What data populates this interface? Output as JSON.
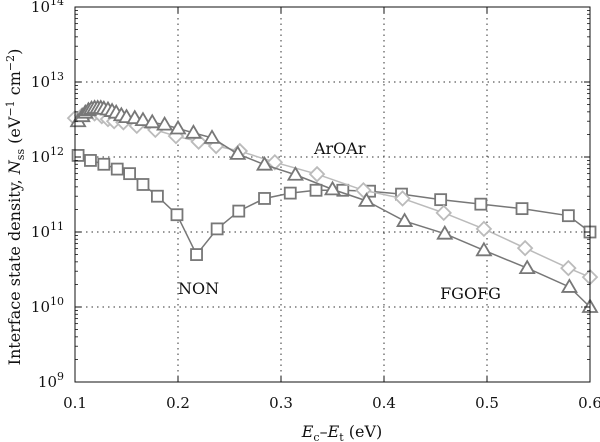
{
  "chart_data": {
    "type": "line",
    "xlabel": "E_c–E_t (eV)",
    "ylabel": "Interface state density, N_ss (eV^−1 cm^−2)",
    "x_axis_label_parts": {
      "main_1": "E",
      "sub_1": "c",
      "dash": "–",
      "main_2": "E",
      "sub_2": "t",
      "unit": " (eV)"
    },
    "y_axis_label_parts": {
      "prefix": "Interface state density, ",
      "main": "N",
      "sub": "ss",
      "unit_open": " (eV",
      "exp1": "−1",
      "unit_mid": " cm",
      "exp2": "−2",
      "unit_close": ")"
    },
    "xlim": [
      0.1,
      0.6
    ],
    "ylim": [
      1000000000.0,
      100000000000000.0
    ],
    "yscale": "log",
    "grid": true,
    "x_ticks": [
      0.1,
      0.2,
      0.3,
      0.4,
      0.5,
      0.6
    ],
    "x_tick_labels": [
      "0.1",
      "0.2",
      "0.3",
      "0.4",
      "0.5",
      "0.6"
    ],
    "y_ticks": [
      1000000000.0,
      10000000000.0,
      100000000000.0,
      1000000000000.0,
      10000000000000.0,
      100000000000000.0
    ],
    "y_tick_labels": [
      {
        "base": "10",
        "exp": "9"
      },
      {
        "base": "10",
        "exp": "10"
      },
      {
        "base": "10",
        "exp": "11"
      },
      {
        "base": "10",
        "exp": "12"
      },
      {
        "base": "10",
        "exp": "13"
      },
      {
        "base": "10",
        "exp": "14"
      }
    ],
    "series": [
      {
        "name": "NON",
        "marker": "square",
        "color": "#777777",
        "x": [
          0.103,
          0.115,
          0.128,
          0.141,
          0.153,
          0.166,
          0.18,
          0.199,
          0.218,
          0.238,
          0.259,
          0.284,
          0.309,
          0.334,
          0.36,
          0.386,
          0.417,
          0.455,
          0.494,
          0.534,
          0.579,
          0.6
        ],
        "y": [
          1050000000000.0,
          900000000000.0,
          800000000000.0,
          690000000000.0,
          600000000000.0,
          430000000000.0,
          300000000000.0,
          170000000000.0,
          50000000000.0,
          110000000000.0,
          190000000000.0,
          280000000000.0,
          330000000000.0,
          360000000000.0,
          360000000000.0,
          350000000000.0,
          320000000000.0,
          270000000000.0,
          235000000000.0,
          205000000000.0,
          165000000000.0,
          100000000000.0
        ]
      },
      {
        "name": "ArOAr",
        "marker": "diamond",
        "color": "#bbbbbb",
        "x": [
          0.1,
          0.107,
          0.113,
          0.119,
          0.126,
          0.132,
          0.138,
          0.147,
          0.16,
          0.178,
          0.198,
          0.22,
          0.237,
          0.26,
          0.294,
          0.335,
          0.38,
          0.418,
          0.458,
          0.497,
          0.537,
          0.579,
          0.6
        ],
        "y": [
          3300000000000.0,
          3600000000000.0,
          3900000000000.0,
          3800000000000.0,
          3500000000000.0,
          3200000000000.0,
          3000000000000.0,
          2900000000000.0,
          2600000000000.0,
          2300000000000.0,
          1900000000000.0,
          1600000000000.0,
          1400000000000.0,
          1200000000000.0,
          850000000000.0,
          590000000000.0,
          360000000000.0,
          280000000000.0,
          180000000000.0,
          110000000000.0,
          61000000000.0,
          33000000000.0,
          25000000000.0
        ]
      },
      {
        "name": "FGOFG",
        "marker": "triangle",
        "color": "#777777",
        "x": [
          0.103,
          0.107,
          0.11,
          0.113,
          0.116,
          0.119,
          0.122,
          0.125,
          0.128,
          0.132,
          0.136,
          0.14,
          0.145,
          0.15,
          0.158,
          0.166,
          0.175,
          0.187,
          0.2,
          0.215,
          0.233,
          0.258,
          0.284,
          0.314,
          0.35,
          0.383,
          0.42,
          0.459,
          0.497,
          0.539,
          0.58,
          0.6
        ],
        "y": [
          3000000000000.0,
          3500000000000.0,
          3900000000000.0,
          4200000000000.0,
          4400000000000.0,
          4500000000000.0,
          4500000000000.0,
          4500000000000.0,
          4400000000000.0,
          4300000000000.0,
          4100000000000.0,
          3900000000000.0,
          3600000000000.0,
          3400000000000.0,
          3300000000000.0,
          3100000000000.0,
          2900000000000.0,
          2700000000000.0,
          2400000000000.0,
          2100000000000.0,
          1800000000000.0,
          1100000000000.0,
          790000000000.0,
          580000000000.0,
          370000000000.0,
          260000000000.0,
          140000000000.0,
          95000000000.0,
          57000000000.0,
          33000000000.0,
          18500000000.0,
          10000000000.0
        ]
      }
    ],
    "annotations": [
      {
        "text": "NON",
        "x": 0.22,
        "y": 15000000000.0
      },
      {
        "text": "ArOAr",
        "x": 0.357,
        "y": 1100000000000.0
      },
      {
        "text": "FGOFG",
        "x": 0.484,
        "y": 12800000000.0
      }
    ]
  }
}
